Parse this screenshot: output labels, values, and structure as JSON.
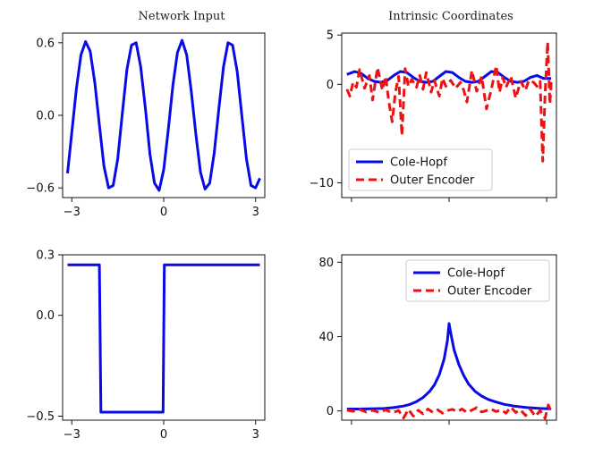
{
  "figure": {
    "col_titles": [
      "Network Input",
      "Intrinsic Coordinates"
    ]
  },
  "colors": {
    "blue": "#0a0ae6",
    "red": "#ee1111",
    "axis": "#111111"
  },
  "chart_data": [
    {
      "id": "top-left",
      "type": "line",
      "title": "Network Input",
      "xlim": [
        -3.3,
        3.3
      ],
      "ylim": [
        -0.68,
        0.68
      ],
      "xticks": [
        {
          "v": -3,
          "label": "−3"
        },
        {
          "v": 0,
          "label": "0"
        },
        {
          "v": 3,
          "label": "3"
        }
      ],
      "yticks": [
        {
          "v": 0.6,
          "label": "0.6"
        },
        {
          "v": 0.0,
          "label": "0.0"
        },
        {
          "v": -0.6,
          "label": "−0.6"
        }
      ],
      "series": [
        {
          "name": "input",
          "style": "solid",
          "color": "#0a0ae6",
          "x": [
            -3.14,
            -3.0,
            -2.85,
            -2.7,
            -2.55,
            -2.4,
            -2.25,
            -2.1,
            -1.95,
            -1.8,
            -1.65,
            -1.5,
            -1.35,
            -1.2,
            -1.05,
            -0.9,
            -0.75,
            -0.6,
            -0.45,
            -0.3,
            -0.15,
            0.0,
            0.15,
            0.3,
            0.45,
            0.6,
            0.75,
            0.9,
            1.05,
            1.2,
            1.35,
            1.5,
            1.65,
            1.8,
            1.95,
            2.1,
            2.25,
            2.4,
            2.55,
            2.7,
            2.85,
            3.0,
            3.14
          ],
          "y": [
            -0.48,
            -0.14,
            0.22,
            0.5,
            0.61,
            0.53,
            0.27,
            -0.08,
            -0.42,
            -0.6,
            -0.58,
            -0.36,
            0.02,
            0.38,
            0.58,
            0.6,
            0.4,
            0.06,
            -0.32,
            -0.56,
            -0.62,
            -0.45,
            -0.12,
            0.25,
            0.52,
            0.62,
            0.5,
            0.2,
            -0.16,
            -0.47,
            -0.61,
            -0.56,
            -0.31,
            0.05,
            0.4,
            0.6,
            0.58,
            0.36,
            0.0,
            -0.36,
            -0.58,
            -0.6,
            -0.52
          ]
        }
      ]
    },
    {
      "id": "top-right",
      "type": "line",
      "title": "Intrinsic Coordinates",
      "xlim": [
        -3.3,
        3.3
      ],
      "ylim": [
        -11.5,
        5.2
      ],
      "xticks": [
        {
          "v": -3,
          "label": ""
        },
        {
          "v": 0,
          "label": ""
        },
        {
          "v": 3,
          "label": ""
        }
      ],
      "yticks": [
        {
          "v": 5,
          "label": "5"
        },
        {
          "v": 0,
          "label": "0"
        },
        {
          "v": -10,
          "label": "−10"
        }
      ],
      "legend": {
        "position": "lower-left",
        "entries": [
          "Cole-Hopf",
          "Outer Encoder"
        ]
      },
      "series": [
        {
          "name": "Cole-Hopf",
          "style": "solid",
          "color": "#0a0ae6",
          "x": [
            -3.14,
            -2.9,
            -2.7,
            -2.5,
            -2.3,
            -2.1,
            -1.9,
            -1.7,
            -1.5,
            -1.3,
            -1.1,
            -0.9,
            -0.7,
            -0.5,
            -0.3,
            -0.1,
            0.1,
            0.3,
            0.5,
            0.7,
            0.9,
            1.1,
            1.3,
            1.5,
            1.7,
            1.9,
            2.1,
            2.3,
            2.5,
            2.7,
            2.9,
            3.14
          ],
          "y": [
            1.0,
            1.3,
            1.1,
            0.6,
            0.3,
            0.2,
            0.4,
            0.9,
            1.3,
            1.2,
            0.7,
            0.3,
            0.2,
            0.3,
            0.8,
            1.3,
            1.2,
            0.7,
            0.3,
            0.2,
            0.3,
            0.8,
            1.3,
            1.2,
            0.7,
            0.3,
            0.2,
            0.3,
            0.7,
            0.9,
            0.6,
            0.6
          ]
        },
        {
          "name": "Outer Encoder",
          "style": "dashed",
          "color": "#ee1111",
          "x": [
            -3.14,
            -3.05,
            -2.95,
            -2.85,
            -2.75,
            -2.6,
            -2.45,
            -2.35,
            -2.2,
            -2.05,
            -1.95,
            -1.85,
            -1.75,
            -1.65,
            -1.55,
            -1.45,
            -1.35,
            -1.25,
            -1.15,
            -1.0,
            -0.9,
            -0.8,
            -0.7,
            -0.55,
            -0.45,
            -0.3,
            -0.2,
            -0.1,
            0.05,
            0.2,
            0.35,
            0.45,
            0.55,
            0.7,
            0.85,
            1.0,
            1.15,
            1.3,
            1.45,
            1.55,
            1.65,
            1.75,
            1.9,
            2.05,
            2.2,
            2.35,
            2.45,
            2.6,
            2.7,
            2.8,
            2.88,
            2.95,
            3.03,
            3.1,
            3.14
          ],
          "y": [
            -0.5,
            -1.2,
            0.2,
            -0.3,
            1.5,
            -0.4,
            0.9,
            -1.6,
            1.7,
            -0.6,
            0.8,
            -1.8,
            -3.8,
            -0.8,
            0.8,
            -5.2,
            1.6,
            -0.2,
            0.5,
            -0.3,
            0.9,
            -0.5,
            1.2,
            -0.8,
            0.4,
            -1.2,
            0.6,
            -0.2,
            0.4,
            -0.4,
            0.2,
            -0.6,
            -1.8,
            1.4,
            -0.7,
            0.8,
            -2.5,
            -0.5,
            1.9,
            -0.8,
            0.7,
            -0.3,
            0.8,
            -1.4,
            0.3,
            -0.6,
            0.4,
            0.2,
            -0.2,
            0.3,
            -7.8,
            -1.0,
            4.3,
            -2.0,
            0.3
          ]
        }
      ]
    },
    {
      "id": "bottom-left",
      "type": "line",
      "title": "",
      "xlim": [
        -3.3,
        3.3
      ],
      "ylim": [
        -0.52,
        0.3
      ],
      "xticks": [
        {
          "v": -3,
          "label": "−3"
        },
        {
          "v": 0,
          "label": "0"
        },
        {
          "v": 3,
          "label": "3"
        }
      ],
      "yticks": [
        {
          "v": 0.3,
          "label": "0.3"
        },
        {
          "v": 0.0,
          "label": "0.0"
        },
        {
          "v": -0.5,
          "label": "−0.5"
        }
      ],
      "series": [
        {
          "name": "input",
          "style": "solid",
          "color": "#0a0ae6",
          "x": [
            -3.14,
            -2.1,
            -2.05,
            -0.02,
            0.02,
            3.14
          ],
          "y": [
            0.25,
            0.25,
            -0.48,
            -0.48,
            0.25,
            0.25
          ]
        }
      ]
    },
    {
      "id": "bottom-right",
      "type": "line",
      "title": "",
      "xlim": [
        -3.3,
        3.3
      ],
      "ylim": [
        -5,
        84
      ],
      "xticks": [
        {
          "v": -3,
          "label": ""
        },
        {
          "v": 0,
          "label": ""
        },
        {
          "v": 3,
          "label": ""
        }
      ],
      "yticks": [
        {
          "v": 80,
          "label": "80"
        },
        {
          "v": 40,
          "label": "40"
        },
        {
          "v": 0,
          "label": "0"
        }
      ],
      "legend": {
        "position": "upper-right",
        "entries": [
          "Cole-Hopf",
          "Outer Encoder"
        ]
      },
      "series": [
        {
          "name": "Cole-Hopf",
          "style": "solid",
          "color": "#0a0ae6",
          "x": [
            -3.14,
            -2.8,
            -2.4,
            -2.0,
            -1.7,
            -1.4,
            -1.2,
            -1.0,
            -0.8,
            -0.6,
            -0.45,
            -0.3,
            -0.15,
            -0.05,
            0.0,
            0.05,
            0.15,
            0.3,
            0.45,
            0.6,
            0.8,
            1.0,
            1.2,
            1.4,
            1.7,
            2.0,
            2.4,
            2.8,
            3.14
          ],
          "y": [
            1.0,
            1.0,
            1.1,
            1.3,
            1.8,
            2.6,
            3.5,
            5.0,
            7.2,
            10.5,
            14.0,
            19.5,
            28.0,
            38.0,
            47.0,
            42.0,
            33.0,
            25.0,
            19.0,
            14.5,
            10.5,
            8.0,
            6.2,
            5.0,
            3.5,
            2.6,
            1.8,
            1.3,
            1.1
          ]
        },
        {
          "name": "Outer Encoder",
          "style": "dashed",
          "color": "#ee1111",
          "x": [
            -3.14,
            -2.95,
            -2.75,
            -2.55,
            -2.35,
            -2.15,
            -1.95,
            -1.75,
            -1.55,
            -1.4,
            -1.25,
            -1.1,
            -0.95,
            -0.8,
            -0.65,
            -0.5,
            -0.35,
            -0.2,
            -0.05,
            0.1,
            0.25,
            0.4,
            0.55,
            0.7,
            0.85,
            1.0,
            1.15,
            1.3,
            1.45,
            1.6,
            1.75,
            1.9,
            2.05,
            2.2,
            2.35,
            2.5,
            2.65,
            2.8,
            2.95,
            3.05,
            3.14
          ],
          "y": [
            0.4,
            -0.2,
            0.8,
            -0.6,
            0.3,
            -0.8,
            0.6,
            -1.0,
            0.2,
            -3.8,
            0.8,
            -2.8,
            0.4,
            -1.6,
            1.0,
            -0.8,
            0.6,
            -1.2,
            0.2,
            0.8,
            -0.4,
            1.0,
            -0.8,
            0.4,
            1.8,
            -0.6,
            0.2,
            0.9,
            -0.4,
            0.6,
            -1.2,
            2.0,
            -0.8,
            0.5,
            -2.5,
            0.8,
            -3.0,
            0.2,
            -4.0,
            3.2,
            -0.4
          ]
        }
      ]
    }
  ]
}
